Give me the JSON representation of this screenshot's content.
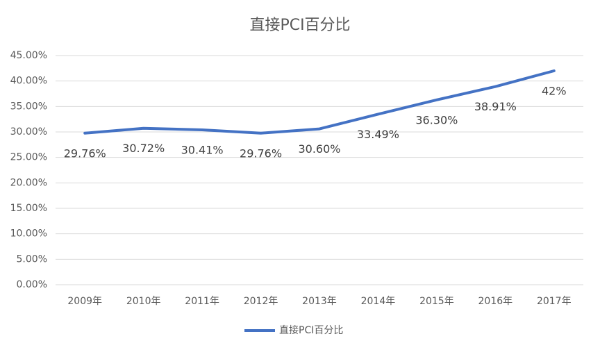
{
  "chart_data": {
    "type": "line",
    "title": "直接PCI百分比",
    "categories": [
      "2009年",
      "2010年",
      "2011年",
      "2012年",
      "2013年",
      "2014年",
      "2015年",
      "2016年",
      "2017年"
    ],
    "series": [
      {
        "name": "直接PCI百分比",
        "color": "#4472c4",
        "values": [
          29.76,
          30.72,
          30.41,
          29.76,
          30.6,
          33.49,
          36.3,
          38.91,
          42
        ],
        "value_labels": [
          "29.76%",
          "30.72%",
          "30.41%",
          "29.76%",
          "30.60%",
          "33.49%",
          "36.30%",
          "38.91%",
          "42%"
        ]
      }
    ],
    "ylim": [
      0,
      45
    ],
    "yticks": [
      {
        "value": 0,
        "label": "0.00%"
      },
      {
        "value": 5,
        "label": "5.00%"
      },
      {
        "value": 10,
        "label": "10.00%"
      },
      {
        "value": 15,
        "label": "15.00%"
      },
      {
        "value": 20,
        "label": "20.00%"
      },
      {
        "value": 25,
        "label": "25.00%"
      },
      {
        "value": 30,
        "label": "30.00%"
      },
      {
        "value": 35,
        "label": "35.00%"
      },
      {
        "value": 40,
        "label": "40.00%"
      },
      {
        "value": 45,
        "label": "45.00%"
      }
    ],
    "grid": true,
    "legend": "bottom"
  }
}
